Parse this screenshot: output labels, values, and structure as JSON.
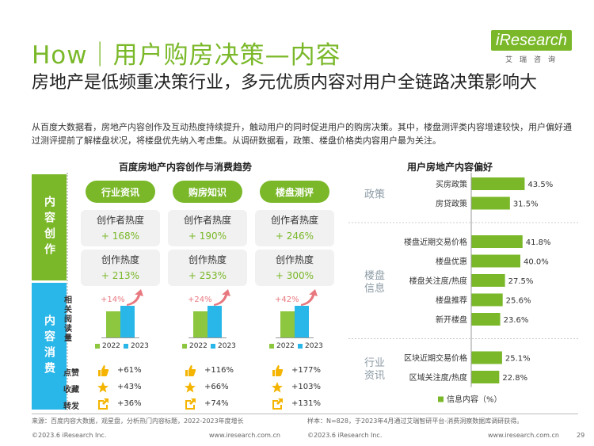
{
  "header": {
    "title": "How｜用户购房决策—内容",
    "logo": "iResearch",
    "logo_sub": "艾瑞咨询",
    "subtitle": "房地产是低频重决策行业，多元优质内容对用户全链路决策影响大",
    "description": "从百度大数据看，房地产内容创作及互动热度持续提升，触动用户的同时促进用户的购房决策。其中，楼盘测评类内容增速较快，用户偏好通过测评提前了解楼盘状况，将楼盘优先纳入考虑集。从调研数据看，政策、楼盘价格类内容用户最为关注。"
  },
  "left": {
    "title": "百度房地产内容创作与消费趋势",
    "band_creation": "内容创作",
    "band_consumption": "内容消费",
    "y_label": "相关阅读量",
    "legend_2022": "2022",
    "legend_2023": "2023",
    "columns": [
      {
        "pill": "行业资讯",
        "box1_label": "创作者热度",
        "box1_value": "+ 168%",
        "box2_label": "创作热度",
        "box2_value": "+ 213%",
        "growth": "+14%",
        "like": "+61%",
        "fav": "+43%",
        "share": "+36%"
      },
      {
        "pill": "购房知识",
        "box1_label": "创作者热度",
        "box1_value": "+ 190%",
        "box2_label": "创作热度",
        "box2_value": "+ 253%",
        "growth": "+24%",
        "like": "+116%",
        "fav": "+66%",
        "share": "+74%"
      },
      {
        "pill": "楼盘测评",
        "box1_label": "创作者热度",
        "box1_value": "+ 246%",
        "box2_label": "创作热度",
        "box2_value": "+ 300%",
        "growth": "+42%",
        "like": "+177%",
        "fav": "+103%",
        "share": "+131%"
      }
    ],
    "interact_labels": {
      "like": "点赞",
      "fav": "收藏",
      "share": "转发"
    },
    "colors": {
      "y2022": "#8dc63f",
      "y2023": "#29b6e8",
      "arrow": "#e8787f"
    }
  },
  "chart_data": {
    "type": "bar",
    "title": "用户房地产内容偏好",
    "legend": "信息内容（%）",
    "groups": [
      {
        "name": "政策",
        "items": [
          {
            "label": "买房政策",
            "value": 43.5
          },
          {
            "label": "房贷政策",
            "value": 31.5
          }
        ]
      },
      {
        "name": "楼盘信息",
        "items": [
          {
            "label": "楼盘近期交易价格",
            "value": 41.8
          },
          {
            "label": "楼盘优惠",
            "value": 40.0
          },
          {
            "label": "楼盘关注度/热度",
            "value": 27.5
          },
          {
            "label": "楼盘推荐",
            "value": 25.6
          },
          {
            "label": "新开楼盘",
            "value": 23.6
          }
        ]
      },
      {
        "name": "行业资讯",
        "items": [
          {
            "label": "区块近期交易价格",
            "value": 25.1
          },
          {
            "label": "区域关注度/热度",
            "value": 22.8
          }
        ]
      }
    ],
    "value_labels": [
      "43.5%",
      "31.5%",
      "41.8%",
      "40.0%",
      "27.5%",
      "25.6%",
      "23.6%",
      "25.1%",
      "22.8%"
    ],
    "bar_color": "#7ab829"
  },
  "footer": {
    "source_left": "来源：百度内容大数据，观星盘，分析热门内容标题，2022-2023年度增长",
    "source_right": "样本：N=828，于2023年4月通过艾瑞智研平台-消费洞察数据库调研获得。",
    "copyright_left": "©2023.6 iResearch Inc.",
    "url_left": "www.iresearch.com.cn",
    "copyright_right": "©2023.6 iResearch Inc.",
    "url_right": "www.iresearch.com.cn",
    "page": "29"
  }
}
